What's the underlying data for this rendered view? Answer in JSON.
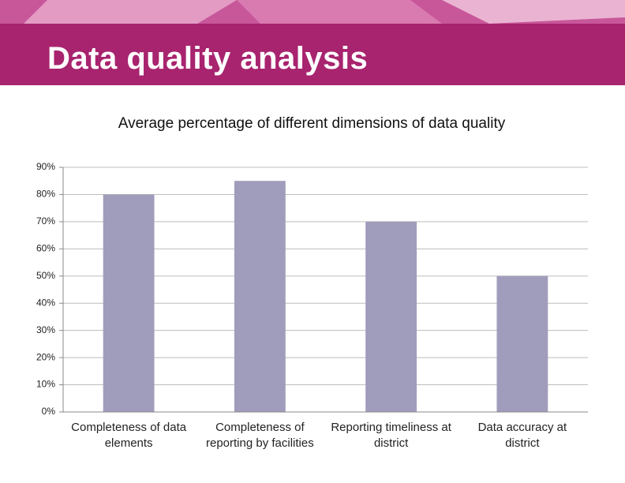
{
  "slide": {
    "title": "Data quality analysis"
  },
  "chart_data": {
    "type": "bar",
    "title": "Average percentage of different dimensions of data quality",
    "categories": [
      "Completeness of data elements",
      "Completeness of reporting by facilities",
      "Reporting timeliness at district",
      "Data accuracy at district"
    ],
    "values": [
      80,
      85,
      70,
      50
    ],
    "color": "#a09cbb",
    "ylim": [
      0,
      90
    ],
    "yticks": [
      {
        "value": 0,
        "label": "0%"
      },
      {
        "value": 10,
        "label": "10%"
      },
      {
        "value": 20,
        "label": "20%"
      },
      {
        "value": 30,
        "label": "30%"
      },
      {
        "value": 40,
        "label": "40%"
      },
      {
        "value": 50,
        "label": "50%"
      },
      {
        "value": 60,
        "label": "60%"
      },
      {
        "value": 70,
        "label": "70%"
      },
      {
        "value": 80,
        "label": "80%"
      },
      {
        "value": 90,
        "label": "90%"
      }
    ],
    "grid": true
  }
}
